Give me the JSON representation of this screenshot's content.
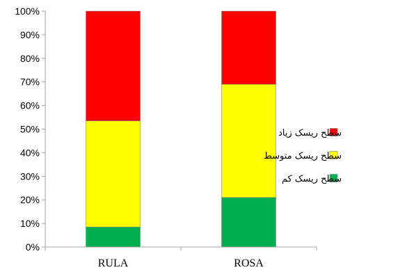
{
  "chart_data": {
    "type": "bar",
    "stacked": true,
    "percent": true,
    "categories": [
      "RULA",
      "ROSA"
    ],
    "series": [
      {
        "name": "سطح ریسک کم",
        "color": "#00B050",
        "values": [
          8.5,
          21
        ]
      },
      {
        "name": "سطح ریسک متوسط",
        "color": "#FFFF00",
        "values": [
          45,
          48
        ]
      },
      {
        "name": "سطح ریسک زیاد",
        "color": "#FF0000",
        "values": [
          46.5,
          31
        ]
      }
    ],
    "ylim": [
      0,
      100
    ],
    "yticks": [
      "0%",
      "10%",
      "20%",
      "30%",
      "40%",
      "50%",
      "60%",
      "70%",
      "80%",
      "90%",
      "100%"
    ],
    "title": "",
    "xlabel": "",
    "ylabel": "",
    "grid": false,
    "legend_position": "right"
  }
}
